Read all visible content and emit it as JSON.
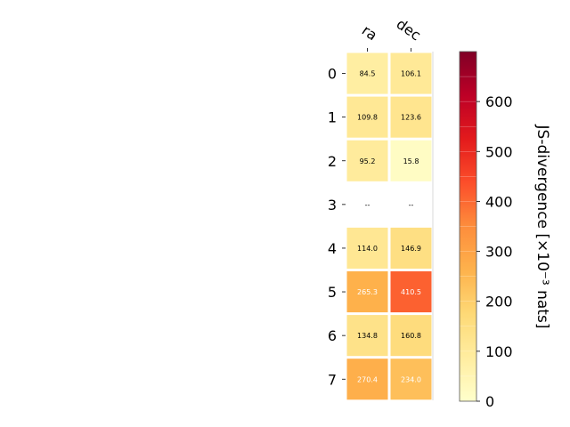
{
  "chart_data": {
    "type": "heatmap",
    "title": "",
    "columns": [
      "ra",
      "dec"
    ],
    "rows": [
      "0",
      "1",
      "2",
      "3",
      "4",
      "5",
      "6",
      "7"
    ],
    "values": [
      [
        84.5,
        106.1
      ],
      [
        109.8,
        123.6
      ],
      [
        95.2,
        15.8
      ],
      [
        null,
        null
      ],
      [
        114.0,
        146.9
      ],
      [
        265.3,
        410.5
      ],
      [
        134.8,
        160.8
      ],
      [
        270.4,
        234.0
      ]
    ],
    "cell_labels": [
      [
        "84.5",
        "106.1"
      ],
      [
        "109.8",
        "123.6"
      ],
      [
        "95.2",
        "15.8"
      ],
      [
        "--",
        "--"
      ],
      [
        "114.0",
        "146.9"
      ],
      [
        "265.3",
        "410.5"
      ],
      [
        "134.8",
        "160.8"
      ],
      [
        "270.4",
        "234.0"
      ]
    ],
    "colorbar": {
      "label": "JS-divergence [×10⁻³ nats]",
      "range": [
        0,
        700
      ],
      "ticks": [
        0,
        100,
        200,
        300,
        400,
        500,
        600
      ],
      "tick_labels": [
        "0",
        "100",
        "200",
        "300",
        "400",
        "500",
        "600"
      ],
      "colormap": "YlOrRd",
      "position": "right"
    },
    "grid": false
  }
}
